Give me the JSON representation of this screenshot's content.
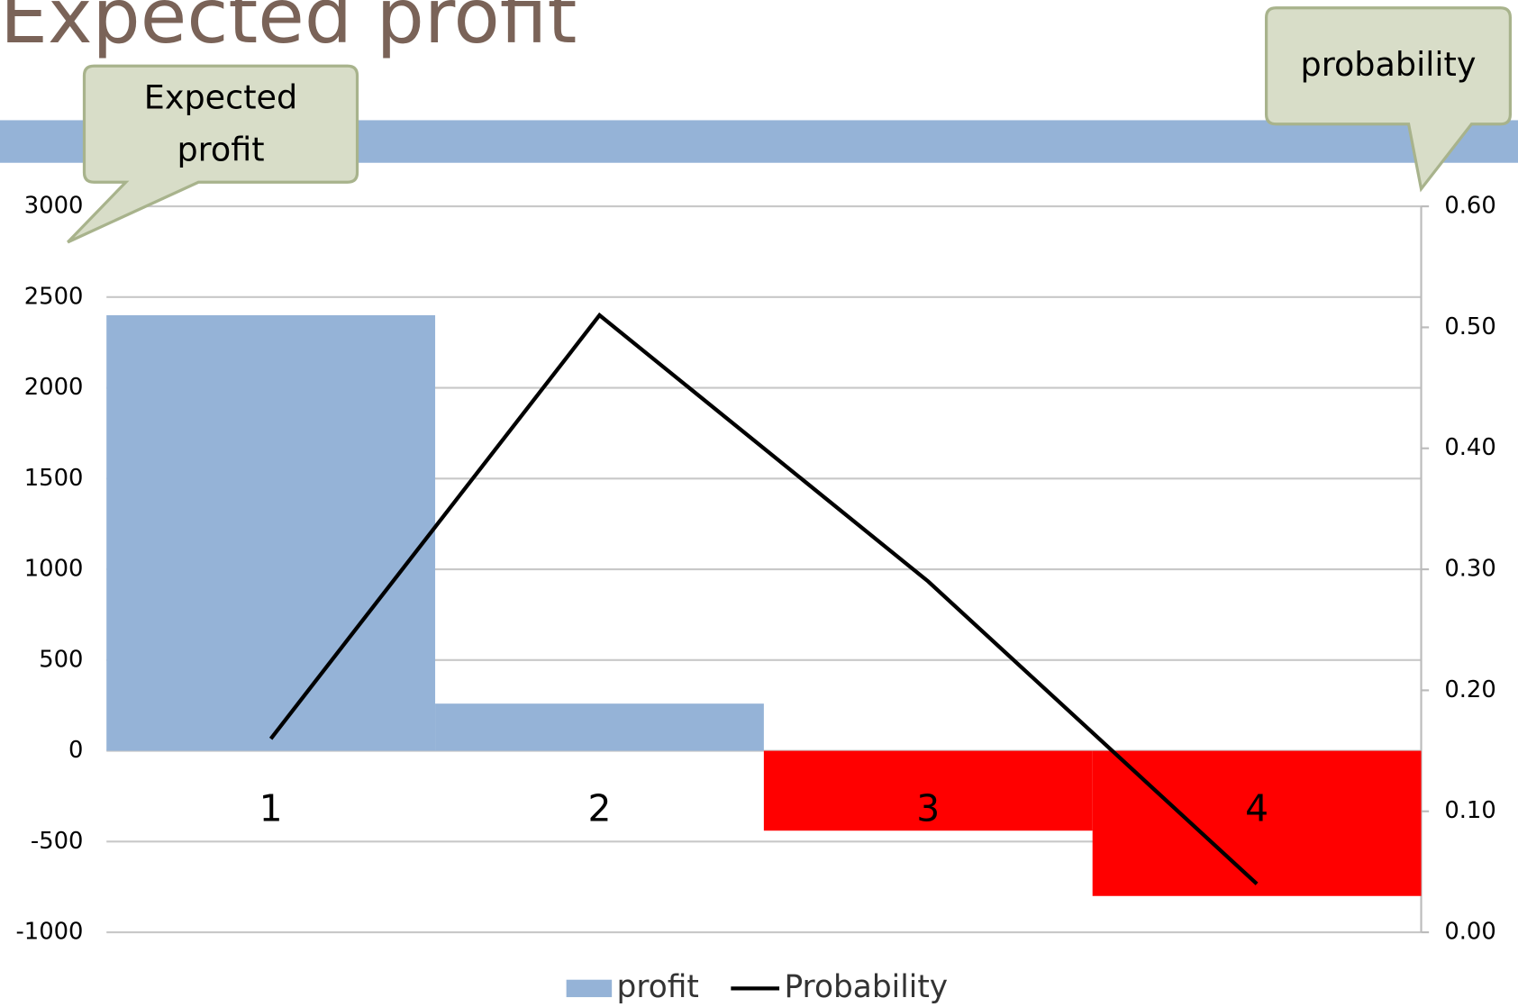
{
  "title": "Expected profit",
  "annotations": [
    "Expected profit",
    "probability"
  ],
  "chart_data": {
    "type": "bar-line",
    "categories": [
      "1",
      "2",
      "3",
      "4"
    ],
    "series": [
      {
        "name": "profit",
        "type": "bar",
        "color": "#95b3d7",
        "colors": [
          "#95b3d7",
          "#95b3d7",
          "#ff0000",
          "#ff0000"
        ],
        "values": [
          2400,
          260,
          -440,
          -800
        ]
      },
      {
        "name": "Probability",
        "type": "line",
        "axis": "y2",
        "color": "#000000",
        "values": [
          0.16,
          0.51,
          0.29,
          0.04
        ]
      }
    ],
    "ylim": [
      -1000,
      3000
    ],
    "yticks": [
      -1000,
      -500,
      0,
      500,
      1000,
      1500,
      2000,
      2500,
      3000
    ],
    "y2lim": [
      0,
      0.6
    ],
    "y2ticks": [
      {
        "value": 0,
        "label": "0.00"
      },
      {
        "value": 0.1,
        "label": "0.10"
      },
      {
        "value": 0.2,
        "label": "0.20"
      },
      {
        "value": 0.3,
        "label": "0.30"
      },
      {
        "value": 0.4,
        "label": "0.40"
      },
      {
        "value": 0.5,
        "label": "0.50"
      },
      {
        "value": 0.6,
        "label": "0.60"
      }
    ],
    "grid": true,
    "legend": "bottom"
  }
}
